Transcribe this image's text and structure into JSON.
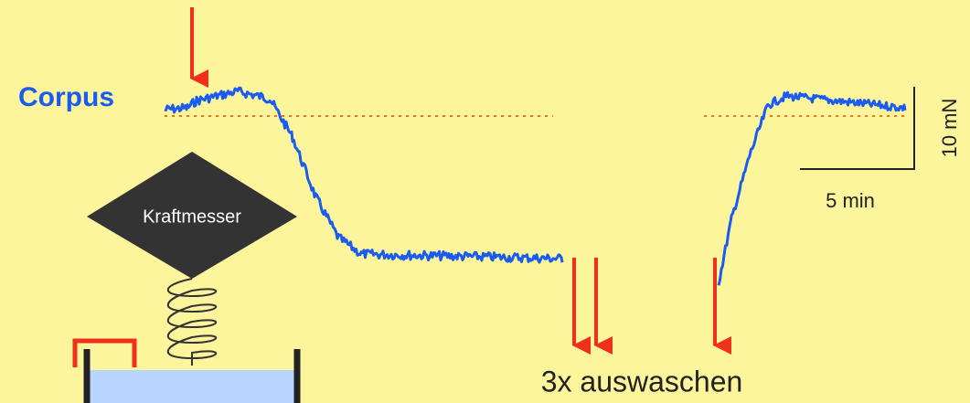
{
  "labels": {
    "corpus": "Corpus",
    "force_meter": "Kraftmesser",
    "scale_force": "10 mN",
    "scale_time": "5 min",
    "washout": "3x auswaschen"
  }
}
